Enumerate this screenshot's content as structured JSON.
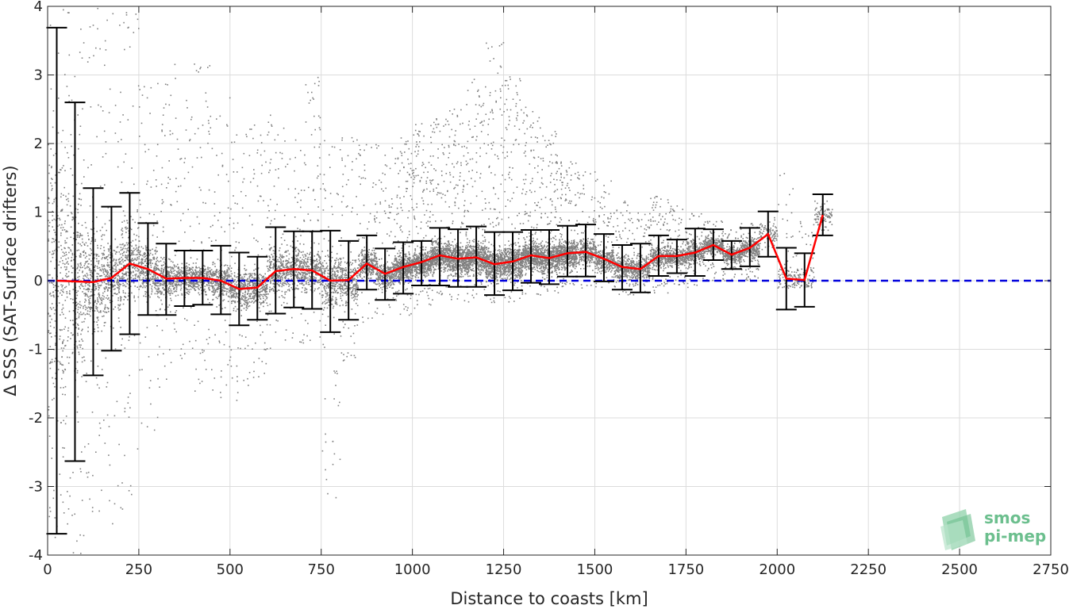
{
  "chart_data": {
    "type": "scatter",
    "xlabel": "Distance to coasts [km]",
    "ylabel": "Δ SSS (SAT-Surface drifters)",
    "xlim": [
      0,
      2750
    ],
    "ylim": [
      -4,
      4
    ],
    "xticks": [
      0,
      250,
      500,
      750,
      1000,
      1250,
      1500,
      1750,
      2000,
      2250,
      2500,
      2750
    ],
    "xtick_labels": [
      "0",
      "250",
      "500",
      "750",
      "1000",
      "1250",
      "1500",
      "1750",
      "2000",
      "2250",
      "2500",
      "2750"
    ],
    "yticks": [
      -4,
      -3,
      -2,
      -1,
      0,
      1,
      2,
      3,
      4
    ],
    "ytick_labels": [
      "-4",
      "-3",
      "-2",
      "-1",
      "0",
      "1",
      "2",
      "3",
      "4"
    ],
    "grid": true,
    "series": [
      {
        "kind": "binned-mean-with-errorbars",
        "color": "#ff0000",
        "errorbar_color": "#000000",
        "x": [
          25,
          75,
          125,
          175,
          225,
          275,
          325,
          375,
          425,
          475,
          525,
          575,
          625,
          675,
          725,
          775,
          825,
          875,
          925,
          975,
          1025,
          1075,
          1125,
          1175,
          1225,
          1275,
          1325,
          1375,
          1425,
          1475,
          1525,
          1575,
          1625,
          1675,
          1725,
          1775,
          1825,
          1875,
          1925,
          1975,
          2025,
          2075,
          2125
        ],
        "mean": [
          0.0,
          -0.01,
          -0.02,
          0.04,
          0.25,
          0.17,
          0.03,
          0.04,
          0.04,
          0.0,
          -0.12,
          -0.1,
          0.14,
          0.17,
          0.15,
          0.0,
          0.01,
          0.25,
          0.1,
          0.2,
          0.27,
          0.37,
          0.32,
          0.34,
          0.24,
          0.28,
          0.37,
          0.33,
          0.4,
          0.42,
          0.32,
          0.2,
          0.17,
          0.36,
          0.36,
          0.41,
          0.52,
          0.38,
          0.48,
          0.68,
          0.03,
          0.01,
          0.96
        ],
        "upper": [
          3.69,
          2.6,
          1.35,
          1.08,
          1.28,
          0.84,
          0.54,
          0.44,
          0.44,
          0.51,
          0.41,
          0.35,
          0.78,
          0.72,
          0.72,
          0.73,
          0.58,
          0.66,
          0.47,
          0.56,
          0.58,
          0.77,
          0.75,
          0.79,
          0.71,
          0.71,
          0.74,
          0.74,
          0.8,
          0.82,
          0.68,
          0.52,
          0.54,
          0.66,
          0.6,
          0.76,
          0.75,
          0.58,
          0.77,
          1.01,
          0.48,
          0.4,
          1.26
        ],
        "lower": [
          -3.69,
          -2.63,
          -1.38,
          -1.02,
          -0.78,
          -0.5,
          -0.5,
          -0.37,
          -0.35,
          -0.49,
          -0.65,
          -0.57,
          -0.48,
          -0.39,
          -0.41,
          -0.75,
          -0.57,
          -0.13,
          -0.28,
          -0.19,
          -0.07,
          -0.07,
          -0.09,
          -0.09,
          -0.21,
          -0.14,
          -0.03,
          -0.05,
          0.06,
          0.06,
          -0.01,
          -0.13,
          -0.17,
          0.07,
          0.11,
          0.07,
          0.3,
          0.17,
          0.21,
          0.35,
          -0.42,
          -0.38,
          0.66
        ]
      },
      {
        "kind": "reference-line",
        "y": 0,
        "color": "#0000dd",
        "style": "dashed"
      },
      {
        "kind": "raw-scatter-cloud",
        "color": "#808080",
        "note_envelope_x": [
          25,
          75,
          125,
          175,
          225,
          275,
          325,
          375,
          425,
          475,
          525,
          575,
          625,
          675,
          725,
          775,
          825,
          875,
          925,
          975,
          1025,
          1075,
          1125,
          1175,
          1225,
          1275,
          1325,
          1375,
          1425,
          1475,
          1525,
          1575,
          1625,
          1675,
          1725,
          1775,
          1825,
          1875,
          1925,
          1975,
          2025,
          2075,
          2125
        ],
        "envelope_upper": [
          4.0,
          4.0,
          4.0,
          4.0,
          4.0,
          3.0,
          3.2,
          2.9,
          3.2,
          2.7,
          2.2,
          2.3,
          2.5,
          2.2,
          3.0,
          2.4,
          2.2,
          2.0,
          2.0,
          2.1,
          2.3,
          2.4,
          2.6,
          3.0,
          3.5,
          3.0,
          2.6,
          2.2,
          1.8,
          1.6,
          1.5,
          1.2,
          1.0,
          1.3,
          1.1,
          1.0,
          0.9,
          0.8,
          0.9,
          1.0,
          1.6,
          0.9,
          1.2
        ],
        "envelope_lower": [
          -4.0,
          -4.0,
          -3.8,
          -3.6,
          -3.4,
          -2.2,
          -1.6,
          -1.2,
          -1.6,
          -1.8,
          -1.8,
          -1.4,
          -1.0,
          -0.9,
          -1.0,
          -3.3,
          -1.2,
          -0.6,
          -0.5,
          -0.5,
          -0.4,
          -0.3,
          -0.3,
          -0.3,
          -0.4,
          -0.3,
          -0.2,
          -0.2,
          -0.1,
          -0.1,
          -0.1,
          -0.2,
          -0.2,
          -0.2,
          -0.1,
          -0.1,
          0.0,
          0.0,
          0.0,
          0.2,
          -0.1,
          -0.1,
          0.7
        ]
      }
    ]
  },
  "logo": {
    "line1": "smos",
    "line2": "pi-mep",
    "color": "#6cbf8e"
  }
}
